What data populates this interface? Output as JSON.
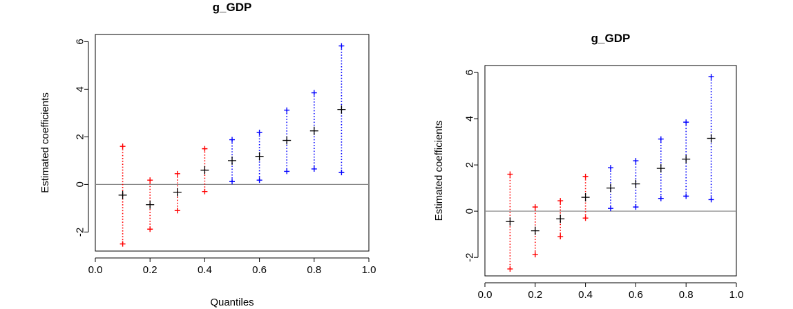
{
  "chart_data": [
    {
      "type": "scatter",
      "title": "g_GDP",
      "xlabel": "Quantiles",
      "ylabel": "Estimated coefficients",
      "xlim": [
        0.0,
        1.0
      ],
      "ylim": [
        -2.8,
        6.3
      ],
      "xticks": [
        0.0,
        0.2,
        0.4,
        0.6,
        0.8,
        1.0
      ],
      "xtick_labels": [
        "0.0",
        "0.2",
        "0.4",
        "0.6",
        "0.8",
        "1.0"
      ],
      "yticks": [
        -2,
        0,
        2,
        4,
        6
      ],
      "ytick_labels": [
        "-2",
        "0",
        "2",
        "4",
        "6"
      ],
      "grid": false,
      "reference_line": 0,
      "x": [
        0.1,
        0.2,
        0.3,
        0.4,
        0.5,
        0.6,
        0.7,
        0.8,
        0.9
      ],
      "series": [
        {
          "values": [
            -0.45,
            -0.85,
            -0.33,
            0.6,
            1.0,
            1.18,
            1.85,
            2.25,
            3.15
          ]
        },
        {
          "values": [
            1.6,
            0.18,
            0.45,
            1.5,
            1.88,
            2.18,
            3.12,
            3.85,
            5.82
          ]
        },
        {
          "values": [
            -2.5,
            -1.88,
            -1.1,
            -0.3,
            0.12,
            0.18,
            0.55,
            0.65,
            0.5
          ]
        }
      ],
      "interval_colors": [
        "#ff0000",
        "#ff0000",
        "#ff0000",
        "#ff0000",
        "#0000ff",
        "#0000ff",
        "#0000ff",
        "#0000ff",
        "#0000ff"
      ],
      "estimate_color": "#000000",
      "reference_line_color": "#888888"
    },
    {
      "type": "scatter",
      "title": "g_GDP",
      "xlabel": "",
      "ylabel": "Estimated coefficients",
      "xlim": [
        0.0,
        1.0
      ],
      "ylim": [
        -2.8,
        6.3
      ],
      "xticks": [
        0.0,
        0.2,
        0.4,
        0.6,
        0.8,
        1.0
      ],
      "xtick_labels": [
        "0.0",
        "0.2",
        "0.4",
        "0.6",
        "0.8",
        "1.0"
      ],
      "yticks": [
        -2,
        0,
        2,
        4,
        6
      ],
      "ytick_labels": [
        "-2",
        "0",
        "2",
        "4",
        "6"
      ],
      "grid": false,
      "reference_line": 0,
      "x": [
        0.1,
        0.2,
        0.3,
        0.4,
        0.5,
        0.6,
        0.7,
        0.8,
        0.9
      ],
      "series": [
        {
          "values": [
            -0.45,
            -0.85,
            -0.33,
            0.6,
            1.0,
            1.18,
            1.85,
            2.25,
            3.15
          ]
        },
        {
          "values": [
            1.6,
            0.18,
            0.45,
            1.5,
            1.88,
            2.18,
            3.12,
            3.85,
            5.82
          ]
        },
        {
          "values": [
            -2.5,
            -1.88,
            -1.1,
            -0.3,
            0.12,
            0.18,
            0.55,
            0.65,
            0.5
          ]
        }
      ],
      "interval_colors": [
        "#ff0000",
        "#ff0000",
        "#ff0000",
        "#ff0000",
        "#0000ff",
        "#0000ff",
        "#0000ff",
        "#0000ff",
        "#0000ff"
      ],
      "estimate_color": "#000000",
      "reference_line_color": "#888888"
    }
  ]
}
